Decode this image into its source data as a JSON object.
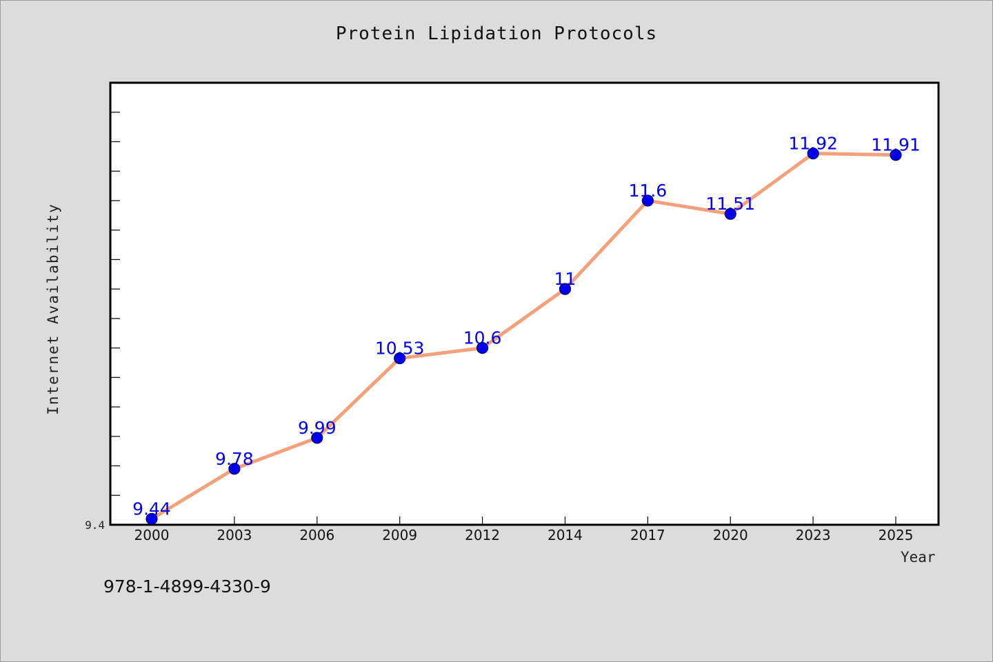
{
  "chart_data": {
    "type": "line",
    "title": "Protein Lipidation Protocols",
    "xlabel": "Year",
    "ylabel": "Internet Availability",
    "categories": [
      "2000",
      "2003",
      "2006",
      "2009",
      "2012",
      "2014",
      "2017",
      "2020",
      "2023",
      "2025"
    ],
    "series": [
      {
        "values": [
          9.44,
          9.78,
          9.99,
          10.53,
          10.6,
          11,
          11.6,
          11.51,
          11.92,
          11.91
        ],
        "labels": [
          "9.44",
          "9.78",
          "9.99",
          "10.53",
          "10.6",
          "11",
          "11.6",
          "11.51",
          "11.92",
          "11.91"
        ]
      }
    ],
    "ylim": [
      9.4,
      12.4
    ],
    "y_tick_labels": [
      "9.4"
    ],
    "grid": false,
    "colors": {
      "line": "#f4a07a",
      "marker": "#0000ee",
      "label": "#0000ee",
      "plot_background": "#ffffff",
      "page_background": "#dcdcdc"
    }
  },
  "footer": {
    "code": "978-1-4899-4330-9"
  }
}
